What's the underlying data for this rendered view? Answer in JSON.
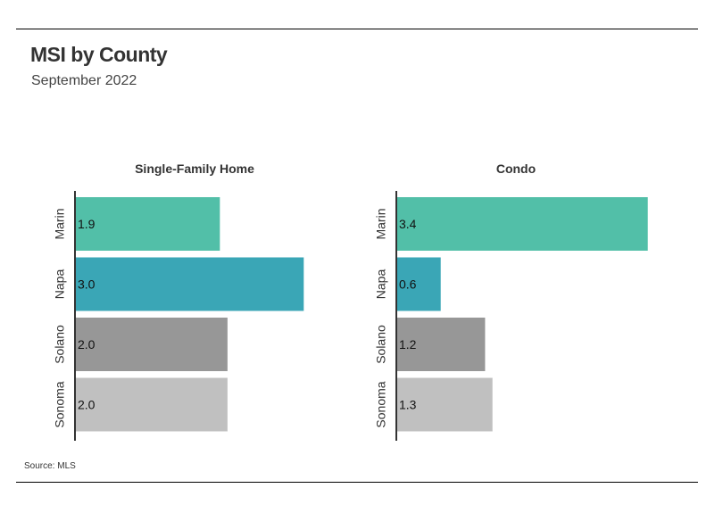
{
  "header": {
    "title": "MSI by County",
    "subtitle": "September 2022"
  },
  "footer": {
    "source": "Source:  MLS"
  },
  "colors": {
    "Marin": "#52bfa8",
    "Napa": "#3aa6b6",
    "Solano": "#979797",
    "Sonoma": "#c0c0c0"
  },
  "chart_data": [
    {
      "type": "bar",
      "orientation": "horizontal",
      "title": "Single-Family Home",
      "categories": [
        "Marin",
        "Napa",
        "Solano",
        "Sonoma"
      ],
      "values": [
        1.9,
        3.0,
        2.0,
        2.0
      ],
      "xlim": [
        0,
        3.5
      ],
      "grid": false
    },
    {
      "type": "bar",
      "orientation": "horizontal",
      "title": "Condo",
      "categories": [
        "Marin",
        "Napa",
        "Solano",
        "Sonoma"
      ],
      "values": [
        3.4,
        0.6,
        1.2,
        1.3
      ],
      "xlim": [
        0,
        3.5
      ],
      "grid": false
    }
  ]
}
